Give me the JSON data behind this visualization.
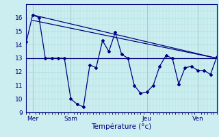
{
  "background_color": "#cceef0",
  "grid_color": "#aadddd",
  "line_color": "#000080",
  "xlabel": "Température (°c)",
  "ylim": [
    9,
    17
  ],
  "xlim": [
    0,
    30
  ],
  "yticks": [
    9,
    10,
    11,
    12,
    13,
    14,
    15,
    16
  ],
  "day_labels": [
    "Mer",
    "Sam",
    "Jeu",
    "Ven"
  ],
  "day_positions": [
    1,
    7,
    19,
    27
  ],
  "vline_color": "#888888",
  "series1_x": [
    0,
    1,
    2,
    3,
    4,
    5,
    6,
    7,
    8,
    9,
    10,
    11,
    12,
    13,
    14,
    15,
    16,
    17,
    18,
    19,
    20,
    21,
    22,
    23,
    24,
    25,
    26,
    27,
    28,
    29,
    30
  ],
  "series1_y": [
    14.2,
    16.2,
    16.0,
    13.0,
    13.0,
    13.0,
    13.0,
    10.0,
    9.6,
    9.4,
    12.5,
    12.3,
    14.3,
    13.5,
    14.9,
    13.3,
    13.0,
    11.0,
    10.4,
    10.5,
    11.0,
    12.4,
    13.2,
    13.0,
    11.1,
    12.3,
    12.4,
    12.1,
    12.1,
    11.8,
    13.1
  ],
  "trend1_x": [
    1,
    30
  ],
  "trend1_y": [
    16.2,
    13.0
  ],
  "trend2_x": [
    1,
    30
  ],
  "trend2_y": [
    15.8,
    13.0
  ],
  "hline_y": 13.0
}
